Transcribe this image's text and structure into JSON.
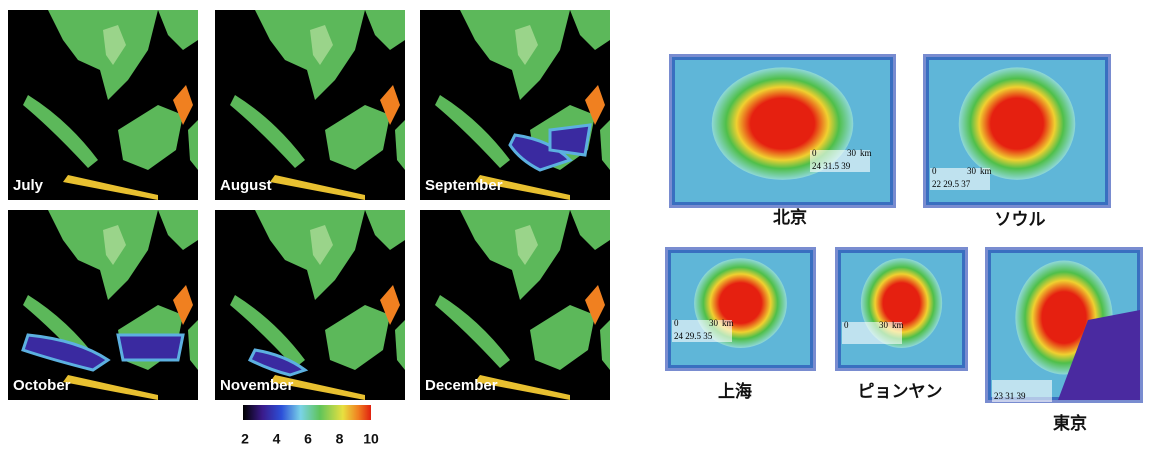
{
  "months": [
    "July",
    "August",
    "September",
    "October",
    "November",
    "December"
  ],
  "colorbar": {
    "ticks": [
      "2",
      "4",
      "6",
      "8",
      "10"
    ]
  },
  "cities": [
    {
      "name": "北京",
      "scale": [
        "0",
        "30",
        "km",
        "24  31.5  39"
      ]
    },
    {
      "name": "ソウル",
      "scale": [
        "0",
        "30",
        "km",
        "22  29.5  37"
      ]
    },
    {
      "name": "上海",
      "scale": [
        "0",
        "30",
        "km",
        "24  29.5  35"
      ]
    },
    {
      "name": "ピョンヤン",
      "scale": [
        "0",
        "30",
        "km"
      ]
    },
    {
      "name": "東京",
      "scale": [
        "23  31  39"
      ]
    }
  ]
}
